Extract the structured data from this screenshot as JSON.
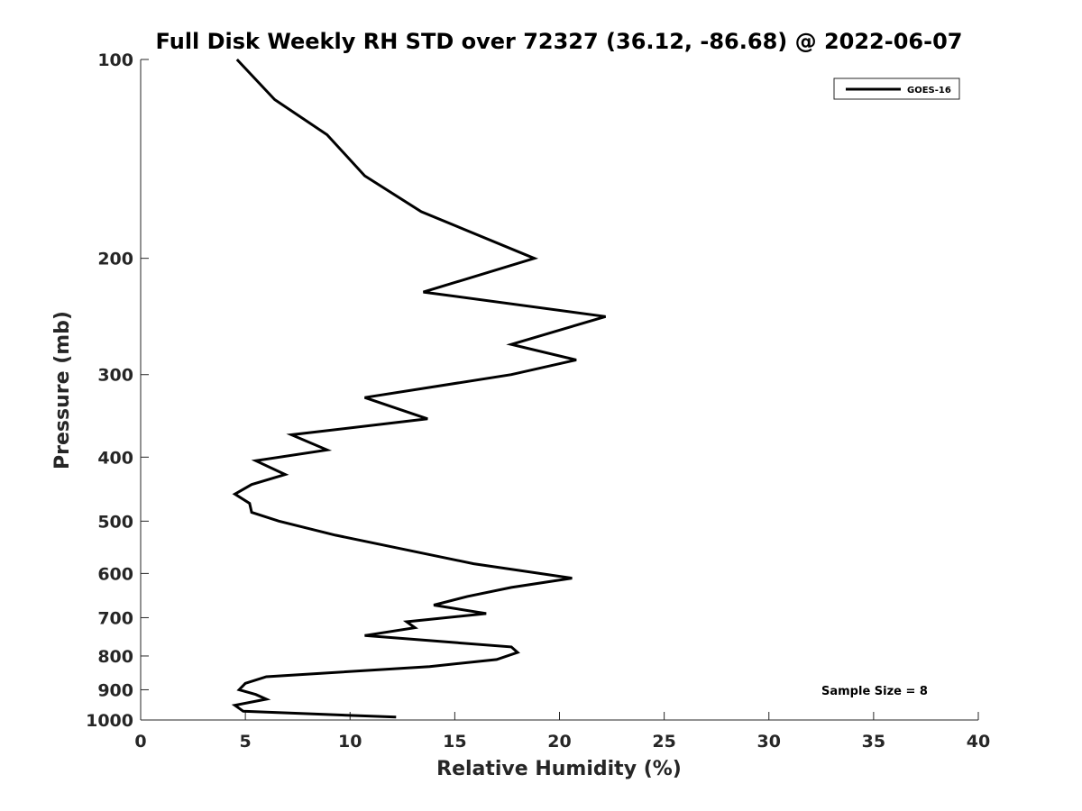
{
  "chart_data": {
    "type": "line",
    "title": "Full Disk Weekly RH STD over 72327 (36.12, -86.68) @ 2022-06-07",
    "xlabel": "Relative Humidity (%)",
    "ylabel": "Pressure (mb)",
    "xlim": [
      0,
      40
    ],
    "ylim": [
      100,
      1000
    ],
    "yscale": "log",
    "y_reversed": true,
    "xticks": [
      0,
      5,
      10,
      15,
      20,
      25,
      30,
      35,
      40
    ],
    "yticks": [
      100,
      200,
      300,
      400,
      500,
      600,
      700,
      800,
      900,
      1000
    ],
    "grid": false,
    "legend_position": "top-right",
    "annotation": "Sample Size = 8",
    "series": [
      {
        "name": "GOES-16",
        "color": "#000000",
        "x": [
          4.6,
          6.4,
          8.9,
          10.7,
          13.4,
          18.8,
          13.5,
          22.2,
          17.7,
          20.8,
          17.7,
          10.7,
          13.7,
          7.2,
          8.9,
          5.5,
          6.9,
          5.3,
          4.5,
          5.2,
          5.3,
          6.6,
          9.3,
          15.9,
          20.6,
          17.7,
          15.6,
          14.0,
          16.5,
          12.7,
          13.1,
          10.7,
          17.7,
          18.0,
          17.0,
          13.8,
          6.0,
          5.0,
          4.7,
          5.5,
          6.0,
          4.5,
          4.9,
          12.2
        ],
        "y": [
          100,
          115,
          130,
          150,
          170,
          200,
          225,
          245,
          270,
          285,
          300,
          325,
          350,
          370,
          390,
          405,
          425,
          440,
          455,
          470,
          485,
          500,
          525,
          580,
          610,
          630,
          650,
          670,
          690,
          710,
          725,
          745,
          775,
          790,
          810,
          830,
          860,
          880,
          900,
          915,
          930,
          950,
          970,
          990
        ]
      }
    ]
  }
}
